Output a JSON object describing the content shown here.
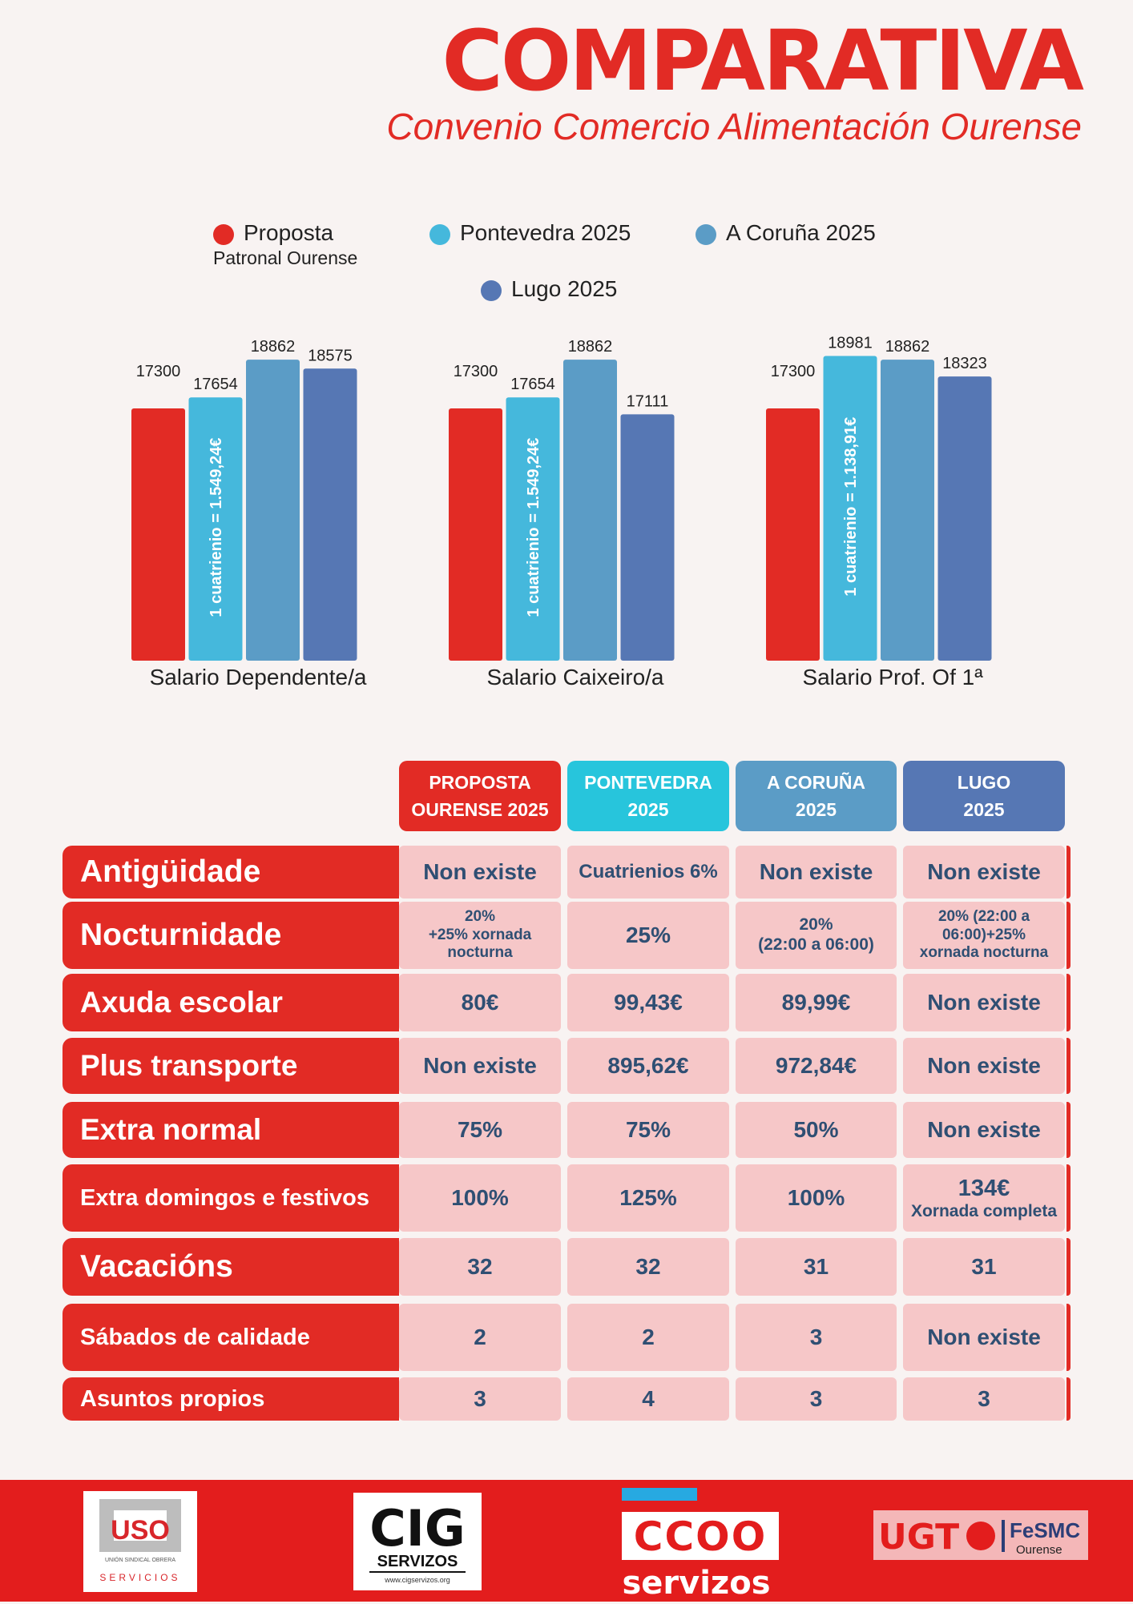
{
  "header": {
    "title": "COMPARATIVA",
    "subtitle": "Convenio Comercio Alimentación Ourense"
  },
  "legend": [
    {
      "label": "Proposta",
      "sublabel": "Patronal Ourense",
      "color": "#e22b25"
    },
    {
      "label": "Pontevedra 2025",
      "color": "#45b8dc"
    },
    {
      "label": "A Coruña 2025",
      "color": "#5b9cc6"
    },
    {
      "label": "Lugo 2025",
      "color": "#5677b4"
    }
  ],
  "chart_data": [
    {
      "type": "bar",
      "title": "Salario Dependente/a",
      "categories": [
        "Proposta Patronal Ourense",
        "Pontevedra 2025",
        "A Coruña 2025",
        "Lugo 2025"
      ],
      "values": [
        17300,
        17654,
        18862,
        18575
      ],
      "bar_annotation": "1 cuatrienio = 1.549,24€",
      "annotated_bar": 1
    },
    {
      "type": "bar",
      "title": "Salario Caixeiro/a",
      "categories": [
        "Proposta Patronal Ourense",
        "Pontevedra 2025",
        "A Coruña 2025",
        "Lugo 2025"
      ],
      "values": [
        17300,
        17654,
        18862,
        17111
      ],
      "bar_annotation": "1 cuatrienio = 1.549,24€",
      "annotated_bar": 1
    },
    {
      "type": "bar",
      "title": "Salario Prof. Of 1ª",
      "categories": [
        "Proposta Patronal Ourense",
        "Pontevedra 2025",
        "A Coruña 2025",
        "Lugo 2025"
      ],
      "values": [
        17300,
        18981,
        18862,
        18323
      ],
      "bar_annotation": "1 cuatrienio = 1.138,91€",
      "annotated_bar": 1
    }
  ],
  "table": {
    "columns": [
      {
        "line1": "PROPOSTA",
        "line2": "OURENSE 2025",
        "color": "#e22b25"
      },
      {
        "line1": "PONTEVEDRA",
        "line2": "2025",
        "color": "#27c5dc"
      },
      {
        "line1": "A CORUÑA",
        "line2": "2025",
        "color": "#5b9cc6"
      },
      {
        "line1": "LUGO",
        "line2": "2025",
        "color": "#5677b4"
      }
    ],
    "rows": [
      {
        "label": "Antigüidade",
        "cells": [
          [
            "Non existe"
          ],
          [
            "Cuatrienios 6%"
          ],
          [
            "Non existe"
          ],
          [
            "Non existe"
          ]
        ]
      },
      {
        "label": "Nocturnidade",
        "cells": [
          [
            "20%",
            "+25% xornada",
            "nocturna"
          ],
          [
            "25%"
          ],
          [
            "20%",
            "(22:00 a 06:00)"
          ],
          [
            "20% (22:00 a",
            "06:00)+25%",
            "xornada nocturna"
          ]
        ]
      },
      {
        "label": "Axuda escolar",
        "cells": [
          [
            "80€"
          ],
          [
            "99,43€"
          ],
          [
            "89,99€"
          ],
          [
            "Non existe"
          ]
        ]
      },
      {
        "label": "Plus transporte",
        "cells": [
          [
            "Non existe"
          ],
          [
            "895,62€"
          ],
          [
            "972,84€"
          ],
          [
            "Non existe"
          ]
        ]
      },
      {
        "label": "Extra normal",
        "cells": [
          [
            "75%"
          ],
          [
            "75%"
          ],
          [
            "50%"
          ],
          [
            "Non existe"
          ]
        ]
      },
      {
        "label": "Extra domingos e festivos",
        "cells": [
          [
            "100%"
          ],
          [
            "125%"
          ],
          [
            "100%"
          ],
          [
            "134€",
            "Xornada completa"
          ]
        ]
      },
      {
        "label": "Vacacións",
        "cells": [
          [
            "32"
          ],
          [
            "32"
          ],
          [
            "31"
          ],
          [
            "31"
          ]
        ]
      },
      {
        "label": "Sábados de calidade",
        "cells": [
          [
            "2"
          ],
          [
            "2"
          ],
          [
            "3"
          ],
          [
            "Non existe"
          ]
        ]
      },
      {
        "label": "Asuntos propios",
        "cells": [
          [
            "3"
          ],
          [
            "4"
          ],
          [
            "3"
          ],
          [
            "3"
          ]
        ]
      }
    ]
  },
  "footer": {
    "logos": [
      {
        "text": "USO",
        "subtext": "SERVICIOS",
        "fine": "UNIÓN SINDICAL OBRERA"
      },
      {
        "text": "CIG",
        "subtext": "SERVIZOS",
        "fine": "www.cigservizos.org"
      },
      {
        "text": "CCOO",
        "subtext": "servizos"
      },
      {
        "text": "UGT",
        "subtext": "FeSMC",
        "fine": "Ourense"
      }
    ]
  }
}
